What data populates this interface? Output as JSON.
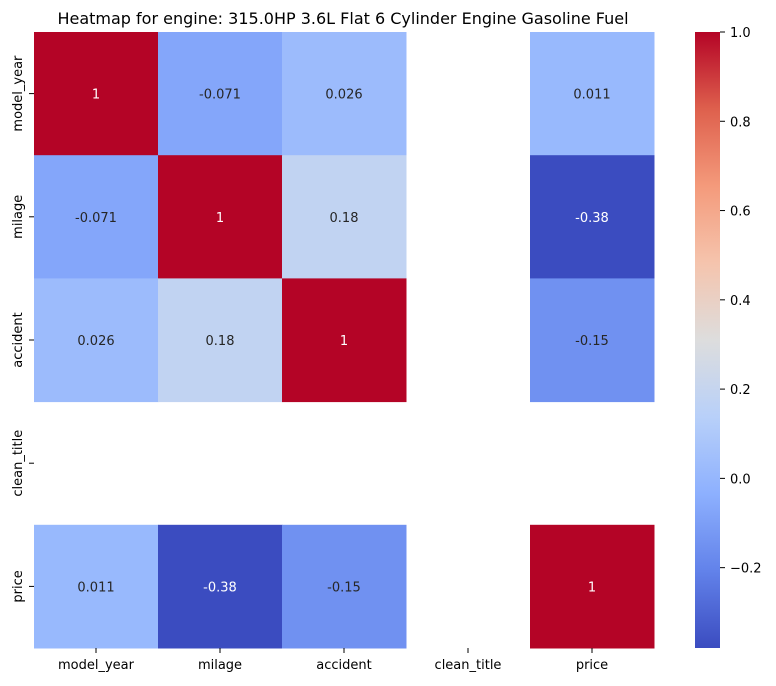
{
  "chart_data": {
    "type": "heatmap",
    "title": "Heatmap for engine: 315.0HP 3.6L Flat 6 Cylinder Engine Gasoline Fuel",
    "x_labels": [
      "model_year",
      "milage",
      "accident",
      "clean_title",
      "price"
    ],
    "y_labels": [
      "model_year",
      "milage",
      "accident",
      "clean_title",
      "price"
    ],
    "matrix": [
      [
        1,
        -0.071,
        0.026,
        null,
        0.011
      ],
      [
        -0.071,
        1,
        0.18,
        null,
        -0.38
      ],
      [
        0.026,
        0.18,
        1,
        null,
        -0.15
      ],
      [
        null,
        null,
        null,
        null,
        null
      ],
      [
        0.011,
        -0.38,
        -0.15,
        null,
        1
      ]
    ],
    "annotations": [
      [
        "1",
        "-0.071",
        "0.026",
        "",
        "0.011"
      ],
      [
        "-0.071",
        "1",
        "0.18",
        "",
        "-0.38"
      ],
      [
        "0.026",
        "0.18",
        "1",
        "",
        "-0.15"
      ],
      [
        "",
        "",
        "",
        "",
        ""
      ],
      [
        "0.011",
        "-0.38",
        "-0.15",
        "",
        "1"
      ]
    ],
    "colormap": "coolwarm",
    "colorbar": {
      "vmin": -0.38,
      "vmax": 1.0,
      "ticks": [
        1.0,
        0.8,
        0.6,
        0.4,
        0.2,
        0.0,
        -0.2
      ],
      "tick_labels": [
        "1.0",
        "0.8",
        "0.6",
        "0.4",
        "0.2",
        "0.0",
        "−0.2"
      ]
    }
  }
}
